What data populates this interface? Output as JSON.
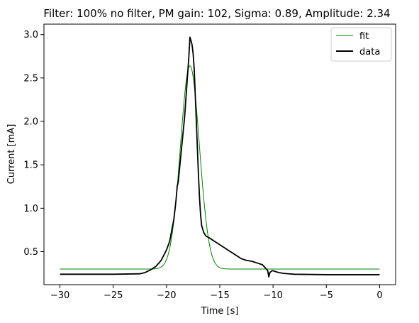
{
  "chart_data": {
    "type": "line",
    "title": "Filter: 100% no filter, PM gain: 102, Sigma: 0.89, Amplitude: 2.34",
    "xlabel": "Time [s]",
    "ylabel": "Current [mA]",
    "xlim": [
      -31.5,
      1.5
    ],
    "ylim": [
      0.12,
      3.12
    ],
    "xticks": [
      -30,
      -25,
      -20,
      -15,
      -10,
      -5,
      0
    ],
    "xtick_labels": [
      "−30",
      "−25",
      "−20",
      "−15",
      "−10",
      "−5",
      "0"
    ],
    "yticks": [
      0.5,
      1.0,
      1.5,
      2.0,
      2.5,
      3.0
    ],
    "ytick_labels": [
      "0.5",
      "1.0",
      "1.5",
      "2.0",
      "2.5",
      "3.0"
    ],
    "grid": false,
    "legend": "top-right",
    "series": [
      {
        "name": "fit",
        "color": "#008000",
        "kind": "gaussian",
        "params": {
          "baseline": 0.3,
          "amplitude": 2.34,
          "center": -17.8,
          "sigma": 0.89
        },
        "x_range": [
          -30,
          0
        ]
      },
      {
        "name": "data",
        "color": "#000000",
        "x": [
          -30,
          -25,
          -22.5,
          -22,
          -21.5,
          -21,
          -20.5,
          -20,
          -19.7,
          -19.5,
          -19.3,
          -19.1,
          -19.0,
          -18.9,
          -18.7,
          -18.5,
          -18.3,
          -18.1,
          -17.9,
          -17.8,
          -17.7,
          -17.6,
          -17.5,
          -17.4,
          -17.3,
          -17.2,
          -17.1,
          -17.0,
          -16.9,
          -16.8,
          -16.7,
          -16.5,
          -16.3,
          -16.0,
          -15.5,
          -15.0,
          -14.5,
          -14.0,
          -13.5,
          -13.0,
          -12.5,
          -12.0,
          -11.5,
          -11.0,
          -10.7,
          -10.5,
          -10.4,
          -10.3,
          -10.2,
          -10.1,
          -10.0,
          -9.5,
          -9.0,
          -8.5,
          -8.0,
          -5.0,
          0.0
        ],
        "y": [
          0.24,
          0.24,
          0.245,
          0.26,
          0.29,
          0.33,
          0.4,
          0.52,
          0.62,
          0.75,
          0.88,
          1.1,
          1.25,
          1.3,
          1.55,
          1.8,
          2.05,
          2.4,
          2.75,
          2.97,
          2.93,
          2.88,
          2.78,
          2.6,
          2.3,
          2.0,
          1.68,
          1.38,
          1.12,
          0.92,
          0.8,
          0.72,
          0.68,
          0.66,
          0.62,
          0.58,
          0.54,
          0.5,
          0.46,
          0.42,
          0.4,
          0.39,
          0.37,
          0.35,
          0.31,
          0.28,
          0.21,
          0.26,
          0.27,
          0.28,
          0.28,
          0.26,
          0.25,
          0.245,
          0.24,
          0.235,
          0.235
        ]
      }
    ]
  }
}
